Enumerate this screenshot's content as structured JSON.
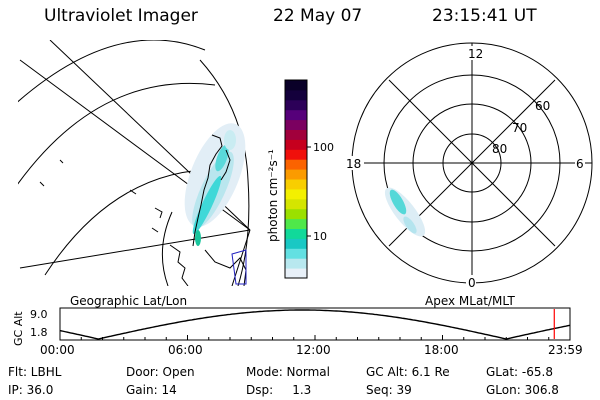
{
  "header": {
    "instrument": "Ultraviolet Imager",
    "date": "22 May 07",
    "time": "23:15:41 UT"
  },
  "colorbar": {
    "unit_label": "photon cm⁻²s⁻¹",
    "ticks": [
      "100",
      "10"
    ],
    "colors": [
      "#e8f0f8",
      "#b8e8ef",
      "#63e0e2",
      "#19c8c4",
      "#11d99a",
      "#4fe84a",
      "#9be000",
      "#d4e500",
      "#f3f000",
      "#f8ce00",
      "#fb9b00",
      "#fb6300",
      "#f0100b",
      "#c6001e",
      "#a1003c",
      "#7b0060",
      "#56007a",
      "#2c0058",
      "#14003c",
      "#0a0028"
    ]
  },
  "polar_plot": {
    "lat_labels": [
      "60",
      "70",
      "80"
    ],
    "mlt_labels": [
      "12",
      "18",
      "6",
      "0"
    ]
  },
  "projection_labels": {
    "left": "Geographic Lat/Lon",
    "right": "Apex MLat/MLT"
  },
  "altitude_plot": {
    "ylabel": "GC Alt",
    "yticks": [
      "9.0",
      "1.8"
    ],
    "xticks": [
      "00:00",
      "06:00",
      "12:00",
      "18:00",
      "23:59"
    ],
    "current_hour": 23.26,
    "marker_color": "#ff0000"
  },
  "info": {
    "flt": "Flt: LBHL",
    "ip": "IP: 36.0",
    "door": "Door: Open",
    "gain": "Gain: 14",
    "mode": "Mode: Normal",
    "dsp": "Dsp:     1.3",
    "gcalt": "GC Alt: 6.1 Re",
    "seq": "Seq: 39",
    "glat": "GLat: -65.8",
    "glon": "GLon: 306.8"
  }
}
